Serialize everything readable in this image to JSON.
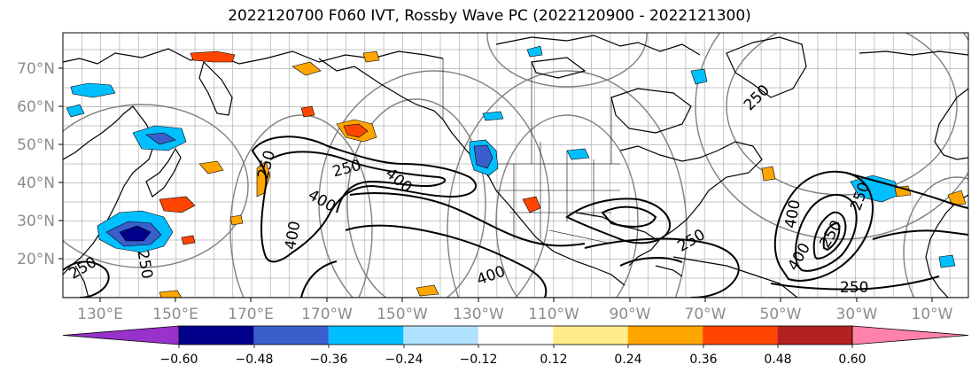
{
  "title": "2022120700 F060 IVT, Rossby Wave PC (2022120900 - 2022121300)",
  "lat_labels": [
    "70°N",
    "60°N",
    "50°N",
    "40°N",
    "30°N",
    "20°N"
  ],
  "lon_labels": [
    "130°E",
    "150°E",
    "170°E",
    "170°W",
    "150°W",
    "130°W",
    "110°W",
    "90°W",
    "70°W",
    "50°W",
    "30°W",
    "10°W"
  ],
  "colorbar": {
    "ticks": [
      "−0.60",
      "−0.48",
      "−0.36",
      "−0.24",
      "−0.12",
      "0.12",
      "0.24",
      "0.36",
      "0.48",
      "0.60"
    ],
    "colors": [
      "#9932cc",
      "#00008b",
      "#3a5fcd",
      "#00bfff",
      "#b0e2ff",
      "#ffffff",
      "#ffec8b",
      "#ffa500",
      "#ff4500",
      "#b22222",
      "#ff82ab"
    ],
    "under_color": "#9932cc",
    "over_color": "#ff82ab"
  },
  "contour_labels": [
    "250",
    "400",
    "250",
    "400",
    "400",
    "400",
    "250",
    "250",
    "400",
    "250",
    "250",
    "250",
    "250",
    "400",
    "250"
  ],
  "colors": {
    "ivt_contour": "#000000",
    "rossby_contour": "#808080",
    "coast": "#000000",
    "grid": "#b0b0b0"
  }
}
